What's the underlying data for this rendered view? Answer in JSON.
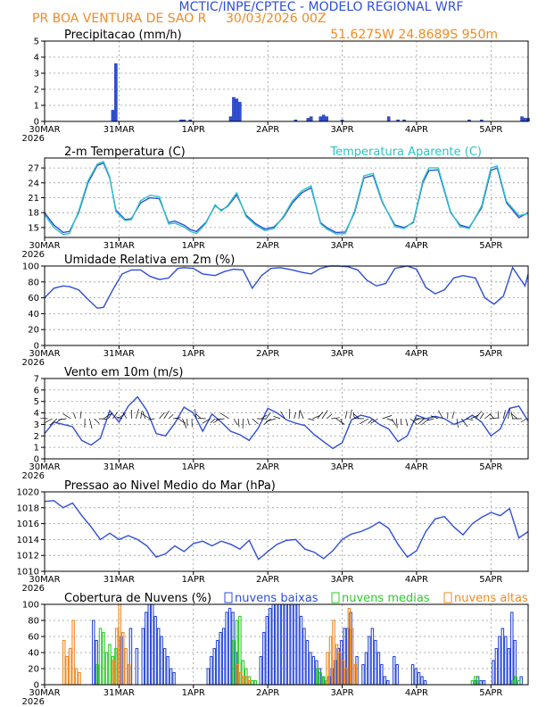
{
  "header": {
    "title": "MCTIC/INPE/CPTEC - MODELO REGIONAL WRF",
    "station": "PR BOA VENTURA DE SAO R",
    "run": "30/03/2026 00Z",
    "location": "51.6275W 24.8689S 950m"
  },
  "colors": {
    "blue": "#2f4fd6",
    "cyan": "#2cc4c4",
    "green": "#2bcc2b",
    "orange": "#f08a24",
    "header_blue": "#2f4fd6",
    "header_orange": "#f08a24"
  },
  "x_axis": {
    "start_hour": 0,
    "end_hour": 156,
    "ticks": [
      {
        "hour": 0,
        "label": "30MAR",
        "year": "2026"
      },
      {
        "hour": 24,
        "label": "31MAR",
        "year": ""
      },
      {
        "hour": 48,
        "label": "1APR",
        "year": ""
      },
      {
        "hour": 72,
        "label": "2APR",
        "year": ""
      },
      {
        "hour": 96,
        "label": "3APR",
        "year": ""
      },
      {
        "hour": 120,
        "label": "4APR",
        "year": ""
      },
      {
        "hour": 144,
        "label": "5APR",
        "year": ""
      }
    ]
  },
  "chart_data": [
    {
      "id": "precip",
      "type": "bar",
      "title": "Precipitacao (mm/h)",
      "ylim": [
        0,
        5
      ],
      "yticks": [
        0,
        1,
        2,
        3,
        4,
        5
      ],
      "hours": [
        22,
        23,
        44,
        45,
        47,
        60,
        61,
        62,
        63,
        81,
        85,
        86,
        89,
        90,
        91,
        96,
        111,
        114,
        116,
        137,
        141,
        154,
        155,
        156
      ],
      "values": [
        0.7,
        3.6,
        0.1,
        0.1,
        0.1,
        0.3,
        1.5,
        1.4,
        1.2,
        0.1,
        0.2,
        0.3,
        0.3,
        0.4,
        0.3,
        0.1,
        0.3,
        0.1,
        0.1,
        0.1,
        0.1,
        0.3,
        0.2,
        0.2
      ]
    },
    {
      "id": "temp",
      "type": "line",
      "title": "2-m Temperatura (C)",
      "legend": "Temperatura Aparente (C)",
      "ylim": [
        13,
        29
      ],
      "yticks": [
        15,
        18,
        21,
        24,
        27
      ],
      "series": [
        {
          "name": "2-m Temperatura (C)",
          "color_key": "blue",
          "hours": [
            0,
            3,
            6,
            8,
            11,
            14,
            17,
            19,
            21,
            23,
            26,
            28,
            31,
            34,
            37,
            40,
            42,
            45,
            47,
            49,
            52,
            55,
            57,
            59,
            62,
            65,
            68,
            71,
            74,
            77,
            80,
            83,
            86,
            89,
            91,
            94,
            97,
            100,
            103,
            106,
            109,
            113,
            116,
            119,
            122,
            124,
            127,
            131,
            134,
            137,
            141,
            144,
            146,
            149,
            153,
            156
          ],
          "values": [
            18,
            15.5,
            14,
            14.2,
            18,
            24,
            27.5,
            28,
            25,
            18.5,
            16.6,
            16.8,
            20,
            21,
            20.8,
            16,
            16.3,
            15.5,
            14.6,
            14.2,
            16,
            19.4,
            18.5,
            19.2,
            21.6,
            17.5,
            15.8,
            14.7,
            15.1,
            17,
            20,
            22,
            23,
            16,
            15,
            14,
            14.1,
            18,
            25,
            25.5,
            20,
            15.5,
            15,
            16,
            24,
            26.5,
            26.6,
            18,
            15.5,
            15,
            19,
            26.5,
            27,
            20,
            17,
            18
          ]
        },
        {
          "name": "Temperatura Aparente (C)",
          "color_key": "cyan",
          "hours": [
            0,
            3,
            6,
            8,
            11,
            14,
            17,
            19,
            21,
            23,
            26,
            28,
            31,
            34,
            37,
            40,
            42,
            45,
            47,
            49,
            52,
            55,
            57,
            59,
            62,
            65,
            68,
            71,
            74,
            77,
            80,
            83,
            86,
            89,
            91,
            94,
            97,
            100,
            103,
            106,
            109,
            113,
            116,
            119,
            122,
            124,
            127,
            131,
            134,
            137,
            141,
            144,
            146,
            149,
            153,
            156
          ],
          "values": [
            17.6,
            15,
            13.6,
            13.8,
            18.3,
            24.4,
            27.8,
            28.3,
            25.2,
            18.2,
            16.4,
            16.6,
            20.4,
            21.5,
            21.2,
            15.7,
            15.9,
            15.1,
            14.2,
            13.8,
            15.8,
            19.6,
            18.3,
            19.4,
            22,
            17.2,
            15.5,
            14.4,
            14.8,
            17.2,
            20.4,
            22.4,
            23.4,
            15.8,
            14.7,
            13.7,
            13.8,
            18.3,
            25.4,
            25.9,
            20.2,
            15.2,
            14.8,
            16.2,
            24.4,
            27,
            27,
            18.2,
            15.2,
            14.8,
            19.4,
            27,
            27.4,
            20.3,
            17.4,
            17.8
          ]
        }
      ]
    },
    {
      "id": "rh",
      "type": "line",
      "title": "Umidade Relativa em 2m (%)",
      "ylim": [
        0,
        100
      ],
      "yticks": [
        0,
        20,
        40,
        60,
        80,
        100
      ],
      "series": [
        {
          "name": "Umidade Relativa em 2m (%)",
          "color_key": "blue",
          "hours": [
            0,
            3,
            6,
            8,
            11,
            14,
            17,
            19,
            22,
            25,
            28,
            31,
            34,
            37,
            40,
            43,
            45,
            48,
            51,
            55,
            58,
            61,
            64,
            67,
            70,
            73,
            76,
            80,
            83,
            86,
            89,
            92,
            95,
            98,
            101,
            104,
            107,
            110,
            113,
            117,
            120,
            123,
            126,
            129,
            132,
            135,
            139,
            142,
            145,
            148,
            151,
            155,
            156
          ],
          "values": [
            60,
            72,
            75,
            74,
            70,
            58,
            47,
            48,
            70,
            90,
            95,
            95,
            87,
            83,
            85,
            97,
            98,
            97,
            90,
            88,
            93,
            96,
            95,
            72,
            88,
            97,
            98,
            95,
            92,
            90,
            97,
            100,
            100,
            99,
            95,
            82,
            75,
            78,
            97,
            100,
            96,
            73,
            65,
            70,
            85,
            88,
            85,
            60,
            52,
            62,
            98,
            75,
            90
          ]
        }
      ]
    },
    {
      "id": "wind",
      "type": "line",
      "title": "Vento em 10m (m/s)",
      "ylim": [
        0,
        7
      ],
      "yticks": [
        0,
        1,
        2,
        3,
        4,
        5,
        6,
        7
      ],
      "series": [
        {
          "name": "Vento em 10m (m/s)",
          "color_key": "blue",
          "hours": [
            0,
            3,
            6,
            9,
            12,
            15,
            18,
            21,
            24,
            27,
            30,
            33,
            36,
            39,
            42,
            45,
            48,
            51,
            54,
            57,
            60,
            63,
            66,
            69,
            72,
            75,
            78,
            81,
            84,
            87,
            90,
            93,
            96,
            99,
            102,
            105,
            108,
            111,
            114,
            117,
            120,
            123,
            126,
            129,
            132,
            135,
            138,
            141,
            144,
            147,
            150,
            153,
            156
          ],
          "values": [
            2.2,
            3.2,
            3,
            2.8,
            1.6,
            1.2,
            1.8,
            4.2,
            3.2,
            4.6,
            5.4,
            4.2,
            2.2,
            2,
            3.1,
            4.5,
            4,
            2.4,
            3.9,
            3.2,
            2.4,
            2.1,
            1.6,
            2.7,
            4.4,
            4,
            3.4,
            3.1,
            2.9,
            2.1,
            1.5,
            0.9,
            1.4,
            3.4,
            3.8,
            3.6,
            3,
            2.6,
            1.5,
            2,
            3.8,
            3.5,
            3.7,
            3.5,
            3,
            3.3,
            3.8,
            3.2,
            2,
            2.6,
            4.4,
            4.6,
            3.3
          ]
        }
      ]
    },
    {
      "id": "pressure",
      "type": "line",
      "title": "Pressao ao Nivel Medio do Mar (hPa)",
      "ylim": [
        1010,
        1020
      ],
      "yticks": [
        1010,
        1012,
        1014,
        1016,
        1018,
        1020
      ],
      "series": [
        {
          "name": "Pressao ao Nivel Medio do Mar (hPa)",
          "color_key": "blue",
          "hours": [
            0,
            3,
            6,
            9,
            12,
            15,
            18,
            21,
            24,
            27,
            30,
            33,
            36,
            39,
            42,
            45,
            48,
            51,
            54,
            57,
            60,
            63,
            66,
            69,
            72,
            75,
            78,
            81,
            84,
            87,
            90,
            93,
            96,
            99,
            102,
            105,
            108,
            111,
            114,
            117,
            120,
            123,
            126,
            129,
            132,
            135,
            138,
            141,
            144,
            147,
            150,
            153,
            156
          ],
          "values": [
            1018.8,
            1018.9,
            1018,
            1018.6,
            1017,
            1015.6,
            1014,
            1014.8,
            1014,
            1014.5,
            1014,
            1013.2,
            1011.8,
            1012.2,
            1013.2,
            1012.5,
            1013.5,
            1013.8,
            1013.2,
            1013.8,
            1013.4,
            1012.8,
            1013.9,
            1011.5,
            1012.5,
            1013.4,
            1013.9,
            1014,
            1012.8,
            1012.4,
            1011.6,
            1012.6,
            1014,
            1014.7,
            1015,
            1015.5,
            1016.2,
            1015.4,
            1013.4,
            1011.8,
            1012.6,
            1015,
            1016.6,
            1016.9,
            1015.6,
            1014.6,
            1016,
            1016.8,
            1017.4,
            1017,
            1017.9,
            1014.2,
            1015
          ]
        }
      ]
    },
    {
      "id": "clouds",
      "type": "bar",
      "title": "Cobertura de Nuvens (%)",
      "legend": [
        "nuvens baixas",
        "nuvens medias",
        "nuvens altas"
      ],
      "ylim": [
        0,
        100
      ],
      "yticks": [
        0,
        20,
        40,
        60,
        80,
        100
      ],
      "series": [
        {
          "name": "nuvens baixas",
          "color_key": "blue",
          "hours": [
            16,
            17,
            25,
            28,
            30,
            32,
            33,
            34,
            35,
            36,
            37,
            38,
            39,
            40,
            41,
            42,
            53,
            54,
            55,
            56,
            57,
            58,
            59,
            60,
            61,
            62,
            70,
            71,
            72,
            73,
            74,
            75,
            76,
            77,
            78,
            79,
            80,
            81,
            82,
            83,
            84,
            85,
            86,
            87,
            88,
            89,
            90,
            92,
            93,
            94,
            95,
            96,
            97,
            98,
            99,
            101,
            103,
            104,
            105,
            106,
            107,
            108,
            109,
            110,
            111,
            113,
            114,
            119,
            120,
            121,
            122,
            123,
            139,
            140,
            141,
            142,
            145,
            146,
            147,
            148,
            149,
            150,
            151,
            152,
            154
          ],
          "values": [
            80,
            55,
            60,
            70,
            45,
            70,
            90,
            100,
            100,
            85,
            70,
            60,
            45,
            35,
            20,
            15,
            20,
            35,
            45,
            55,
            65,
            70,
            90,
            95,
            90,
            40,
            35,
            65,
            85,
            95,
            100,
            100,
            100,
            100,
            100,
            100,
            100,
            100,
            100,
            85,
            70,
            55,
            40,
            35,
            30,
            20,
            10,
            10,
            20,
            30,
            45,
            55,
            70,
            70,
            90,
            35,
            25,
            40,
            60,
            70,
            55,
            40,
            25,
            10,
            5,
            35,
            25,
            25,
            20,
            15,
            10,
            5,
            5,
            10,
            5,
            5,
            30,
            45,
            60,
            70,
            60,
            45,
            90,
            55,
            10
          ]
        },
        {
          "name": "nuvens medias",
          "color_key": "green",
          "hours": [
            17,
            18,
            19,
            20,
            21,
            22,
            23,
            61,
            62,
            63,
            64,
            65,
            66,
            67,
            68,
            88,
            89,
            90,
            91,
            138,
            139,
            140,
            151,
            152,
            153
          ],
          "values": [
            25,
            70,
            65,
            40,
            50,
            35,
            45,
            55,
            80,
            85,
            30,
            20,
            10,
            5,
            5,
            20,
            15,
            10,
            5,
            5,
            10,
            5,
            5,
            10,
            5
          ]
        },
        {
          "name": "nuvens altas",
          "color_key": "orange",
          "hours": [
            6,
            7,
            8,
            9,
            10,
            11,
            22,
            23,
            24,
            25,
            26,
            27,
            62,
            63,
            64,
            65,
            66,
            91,
            92,
            93,
            94,
            95,
            96,
            97,
            98,
            99,
            100
          ],
          "values": [
            55,
            35,
            45,
            80,
            20,
            15,
            30,
            70,
            100,
            65,
            45,
            25,
            25,
            15,
            10,
            10,
            5,
            40,
            60,
            80,
            50,
            40,
            30,
            20,
            95,
            70,
            25
          ]
        }
      ]
    }
  ]
}
